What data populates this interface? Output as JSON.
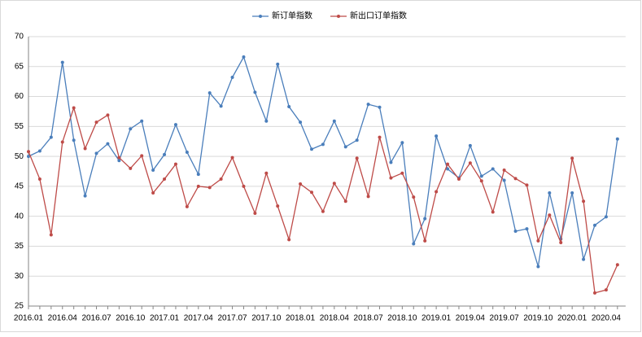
{
  "chart_data": {
    "type": "line",
    "categories": [
      "2016.01",
      null,
      null,
      "2016.04",
      null,
      null,
      "2016.07",
      null,
      null,
      "2016.10",
      null,
      null,
      "2017.01",
      null,
      null,
      "2017.04",
      null,
      null,
      "2017.07",
      null,
      null,
      "2017.10",
      null,
      null,
      "2018.01",
      null,
      null,
      "2018.04",
      null,
      null,
      "2018.07",
      null,
      null,
      "2018.10",
      null,
      null,
      "2019.01",
      null,
      null,
      "2019.04",
      null,
      null,
      "2019.07",
      null,
      null,
      "2019.10",
      null,
      null,
      "2020.01",
      null,
      null,
      "2020.04",
      null
    ],
    "series": [
      {
        "name": "新订单指数",
        "color": "#4a7ebb",
        "values": [
          50,
          50.9,
          53.2,
          65.7,
          52.7,
          43.4,
          50.5,
          52.1,
          49.3,
          54.6,
          55.9,
          47.7,
          50.3,
          55.3,
          50.7,
          47.0,
          60.6,
          58.4,
          63.2,
          66.6,
          60.7,
          55.9,
          65.4,
          58.3,
          55.7,
          51.2,
          52.0,
          55.9,
          51.6,
          52.7,
          58.7,
          58.2,
          49.0,
          52.3,
          35.4,
          39.6,
          53.4,
          47.9,
          46.4,
          51.8,
          46.7,
          47.9,
          46.0,
          37.5,
          37.9,
          31.6,
          43.9,
          36.2,
          43.9,
          32.8,
          38.5,
          39.9,
          52.9
        ]
      },
      {
        "name": "新出口订单指数",
        "color": "#be4b48",
        "values": [
          50.8,
          46.2,
          36.9,
          52.4,
          58.1,
          51.3,
          55.7,
          56.9,
          49.8,
          48.0,
          50.1,
          43.9,
          46.2,
          48.7,
          41.6,
          45.0,
          44.8,
          46.2,
          49.8,
          45.0,
          40.5,
          47.2,
          41.7,
          36.1,
          45.4,
          44.0,
          40.8,
          45.5,
          42.5,
          49.7,
          43.3,
          53.2,
          46.4,
          47.2,
          43.2,
          35.9,
          44.1,
          48.7,
          46.2,
          48.9,
          45.9,
          40.7,
          47.7,
          46.3,
          45.2,
          35.9,
          40.2,
          35.6,
          49.7,
          42.5,
          27.2,
          27.7,
          31.9
        ]
      }
    ],
    "ylim": [
      25,
      70
    ],
    "yticks": [
      25,
      30,
      35,
      40,
      45,
      50,
      55,
      60,
      65,
      70
    ],
    "grid": true,
    "legend": "top"
  }
}
